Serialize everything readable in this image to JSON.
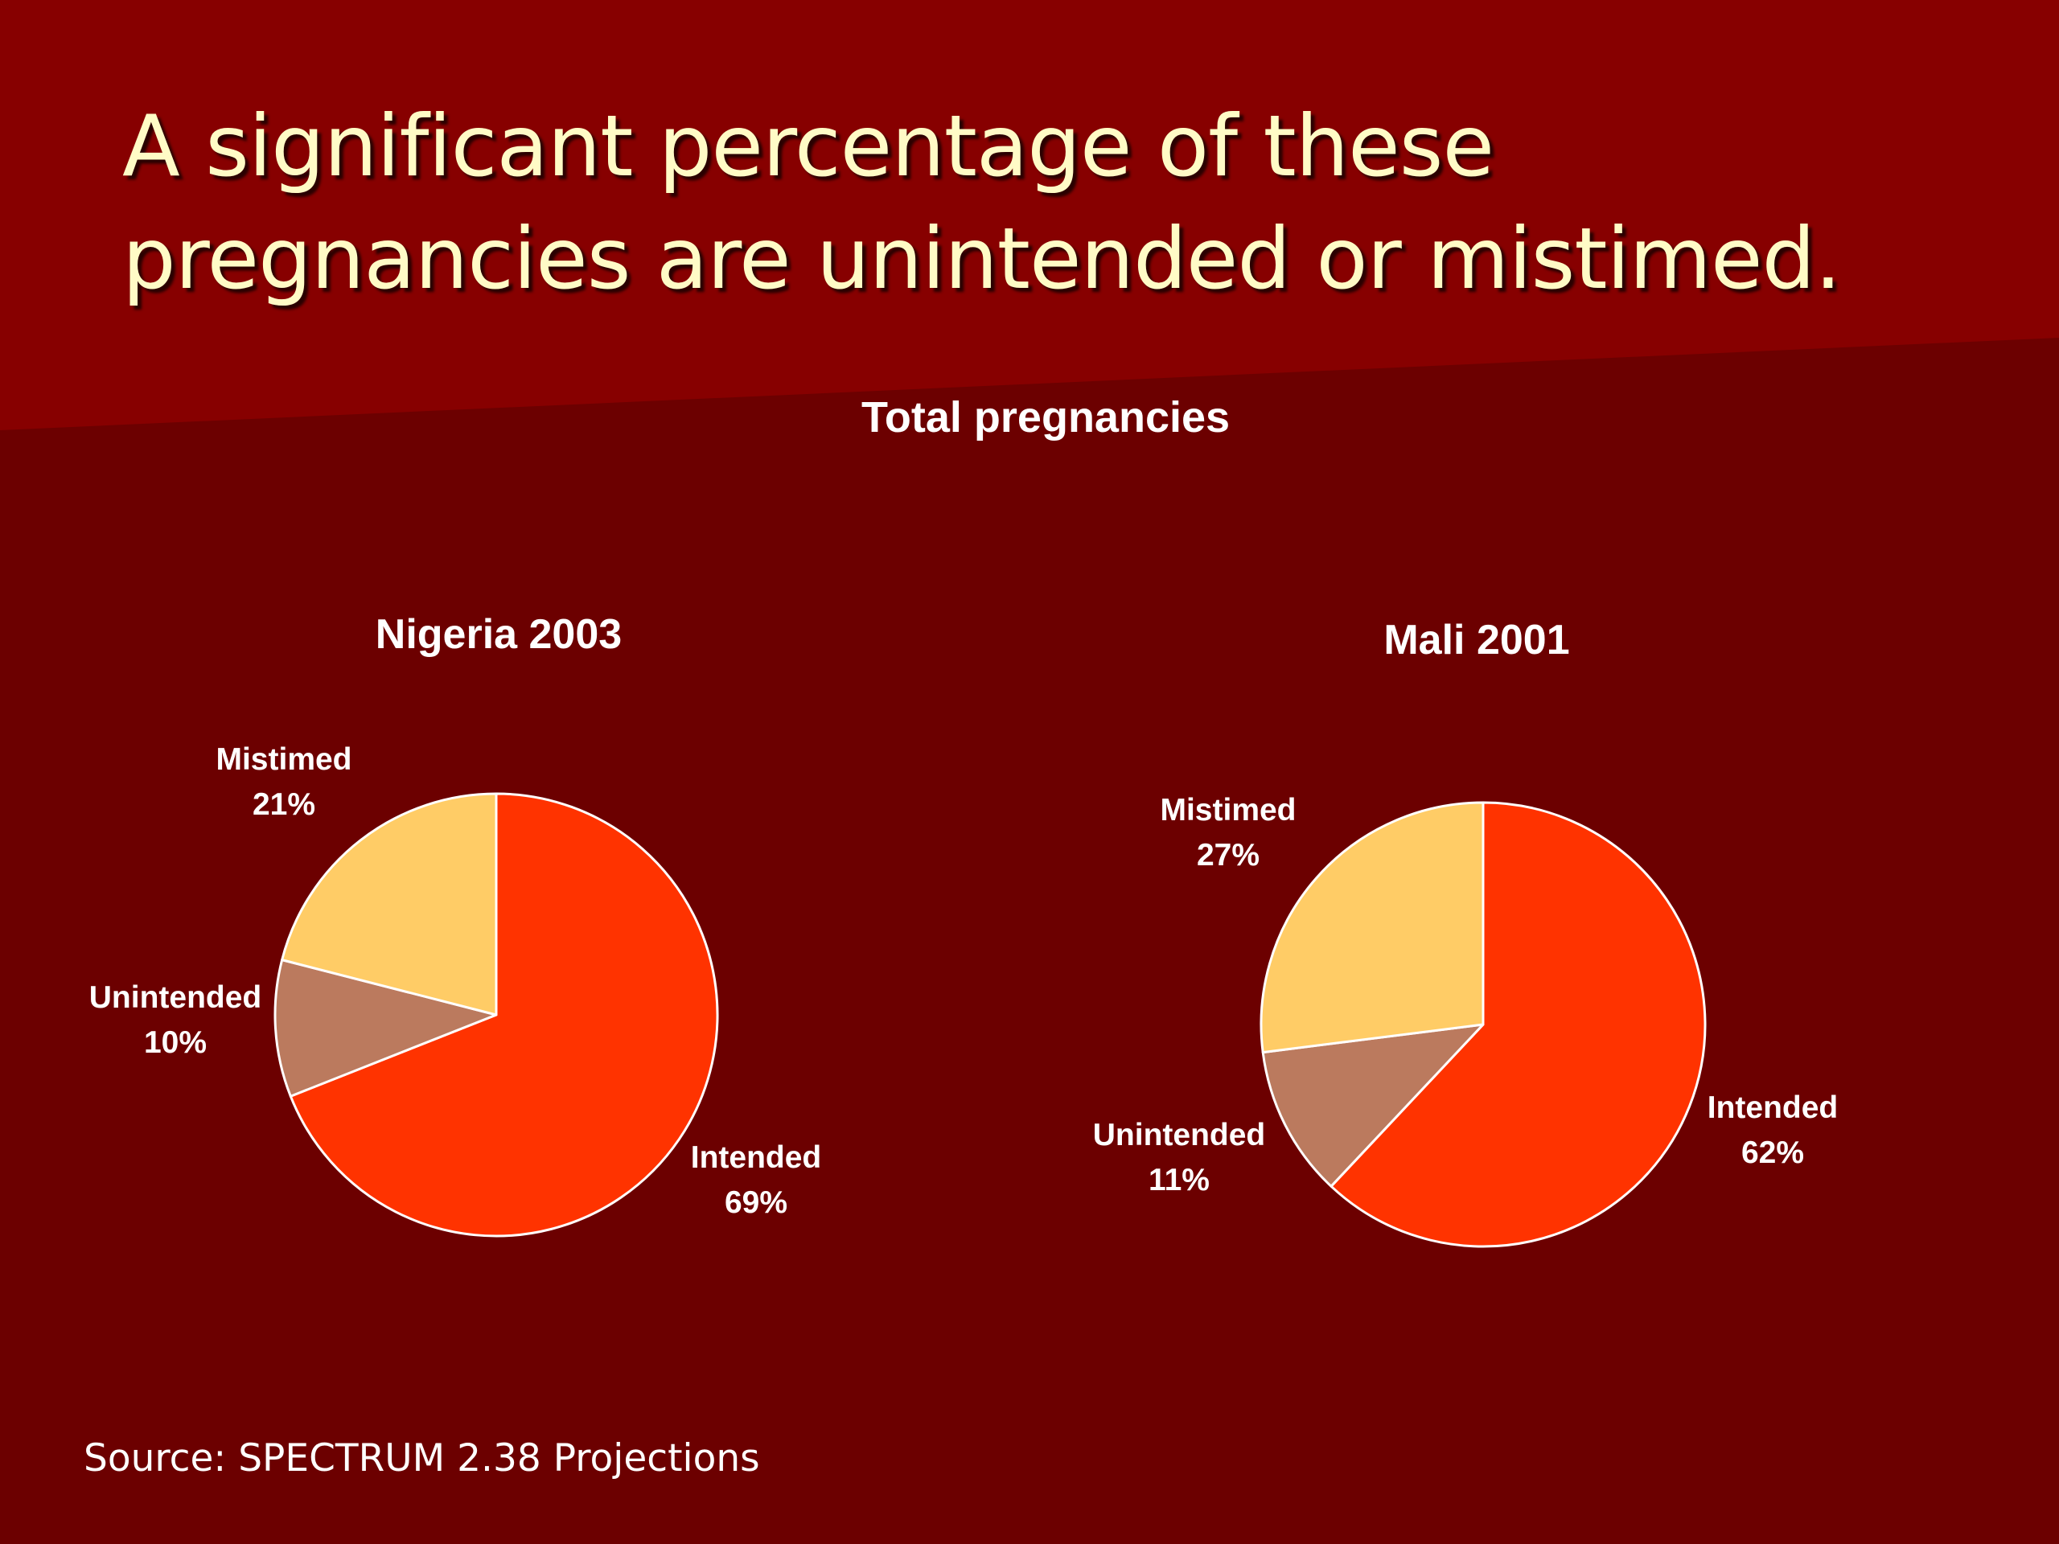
{
  "slide": {
    "title_line1": "A significant percentage of these",
    "title_line2": "pregnancies are unintended or mistimed.",
    "chart_heading": "Total pregnancies",
    "source": "Source: SPECTRUM 2.38 Projections"
  },
  "colors": {
    "background": "#6c0000",
    "background_band": "#870000",
    "title_text": "#fffbc6",
    "intended": "#ff3300",
    "unintended": "#bb7a5e",
    "mistimed": "#ffcc66",
    "slice_border": "#ffffff"
  },
  "chart_data": [
    {
      "type": "pie",
      "title": "Nigeria 2003",
      "categories": [
        "Intended",
        "Unintended",
        "Mistimed"
      ],
      "values": [
        69,
        10,
        21
      ],
      "labels": [
        "69%",
        "10%",
        "21%"
      ],
      "unit": "%"
    },
    {
      "type": "pie",
      "title": "Mali 2001",
      "categories": [
        "Intended",
        "Unintended",
        "Mistimed"
      ],
      "values": [
        62,
        11,
        27
      ],
      "labels": [
        "62%",
        "11%",
        "27%"
      ],
      "unit": "%"
    }
  ]
}
